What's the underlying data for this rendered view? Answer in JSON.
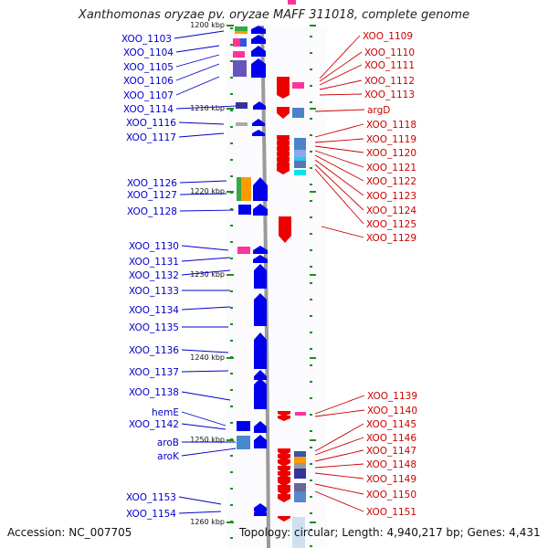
{
  "title": "Xanthomonas oryzae pv. oryzae MAFF 311018, complete genome",
  "footer": {
    "accession": "Accession: NC_007705",
    "topology": "Topology: circular; Length: 4,940,217 bp; Genes: 4,431"
  },
  "colors": {
    "forward_strand": "#0000ee",
    "reverse_strand": "#ee0000",
    "left_label": "#0000cc",
    "right_label": "#cc0000",
    "axis": "#999999",
    "tick": "#228b22"
  },
  "ruler": [
    {
      "label": "1200 kbp",
      "kbp": 1200
    },
    {
      "label": "1210 kbp",
      "kbp": 1210
    },
    {
      "label": "1220 kbp",
      "kbp": 1220
    },
    {
      "label": "1230 kbp",
      "kbp": 1230
    },
    {
      "label": "1240 kbp",
      "kbp": 1240
    },
    {
      "label": "1250 kbp",
      "kbp": 1250
    },
    {
      "label": "1260 kbp",
      "kbp": 1260
    }
  ],
  "forward_genes": [
    {
      "name": "XOO_1103",
      "start": 1201.0,
      "end": 1203.0
    },
    {
      "name": "XOO_1104",
      "start": 1203.0,
      "end": 1203.8
    },
    {
      "name": "XOO_1105",
      "start": 1203.8,
      "end": 1204.5
    },
    {
      "name": "XOO_1106",
      "start": 1204.5,
      "end": 1206.5
    },
    {
      "name": "XOO_1107",
      "start": 1206.5,
      "end": 1207.0
    },
    {
      "name": "XOO_1114",
      "start": 1209.5,
      "end": 1210.4
    },
    {
      "name": "XOO_1116",
      "start": 1211.8,
      "end": 1212.6
    },
    {
      "name": "XOO_1117",
      "start": 1212.6,
      "end": 1213.2
    },
    {
      "name": "XOO_1126",
      "start": 1218.2,
      "end": 1220.7
    },
    {
      "name": "XOO_1127",
      "start": 1220.7,
      "end": 1221.4
    },
    {
      "name": "XOO_1128",
      "start": 1221.4,
      "end": 1222.6
    },
    {
      "name": "XOO_1130",
      "start": 1227.7,
      "end": 1228.8
    },
    {
      "name": "XOO_1131",
      "start": 1228.8,
      "end": 1229.5
    },
    {
      "name": "XOO_1132",
      "start": 1229.5,
      "end": 1232.0
    },
    {
      "name": "XOO_1133",
      "start": 1232.2,
      "end": 1232.8
    },
    {
      "name": "XOO_1134",
      "start": 1232.8,
      "end": 1235.8
    },
    {
      "name": "XOO_1135",
      "start": 1236.0,
      "end": 1236.6
    },
    {
      "name": "XOO_1136",
      "start": 1236.6,
      "end": 1240.3
    },
    {
      "name": "XOO_1137",
      "start": 1240.3,
      "end": 1243.1
    },
    {
      "name": "XOO_1138",
      "start": 1243.1,
      "end": 1246.5
    },
    {
      "name": "hemE",
      "start": 1247.5,
      "end": 1248.6
    },
    {
      "name": "XOO_1142",
      "start": 1248.6,
      "end": 1249.2
    },
    {
      "name": "aroB",
      "start": 1249.4,
      "end": 1250.6
    },
    {
      "name": "aroK",
      "start": 1250.6,
      "end": 1251.2
    },
    {
      "name": "XOO_1153",
      "start": 1256.0,
      "end": 1256.5
    },
    {
      "name": "XOO_1154",
      "start": 1256.5,
      "end": 1257.2
    }
  ],
  "reverse_genes": [
    {
      "name": "XOO_1109",
      "start": 1205.8,
      "end": 1206.2
    },
    {
      "name": "XOO_1110",
      "start": 1206.2,
      "end": 1206.7
    },
    {
      "name": "XOO_1111",
      "start": 1206.7,
      "end": 1207.0
    },
    {
      "name": "XOO_1112",
      "start": 1207.0,
      "end": 1207.6
    },
    {
      "name": "XOO_1113",
      "start": 1207.6,
      "end": 1208.3
    },
    {
      "name": "argD",
      "start": 1209.3,
      "end": 1210.8
    },
    {
      "name": "XOO_1118",
      "start": 1212.5,
      "end": 1213.0
    },
    {
      "name": "XOO_1119",
      "start": 1213.0,
      "end": 1213.6
    },
    {
      "name": "XOO_1120",
      "start": 1213.6,
      "end": 1214.2
    },
    {
      "name": "XOO_1121",
      "start": 1214.2,
      "end": 1214.8
    },
    {
      "name": "XOO_1122",
      "start": 1214.8,
      "end": 1215.4
    },
    {
      "name": "XOO_1123",
      "start": 1215.4,
      "end": 1216.0
    },
    {
      "name": "XOO_1124",
      "start": 1216.0,
      "end": 1216.6
    },
    {
      "name": "XOO_1125",
      "start": 1216.6,
      "end": 1217.0
    },
    {
      "name": "XOO_1129",
      "start": 1222.7,
      "end": 1225.7
    },
    {
      "name": "XOO_1139",
      "start": 1246.3,
      "end": 1246.8
    },
    {
      "name": "XOO_1140",
      "start": 1246.8,
      "end": 1247.3
    },
    {
      "name": "XOO_1145",
      "start": 1251.2,
      "end": 1251.7
    },
    {
      "name": "XOO_1146",
      "start": 1251.7,
      "end": 1252.2
    },
    {
      "name": "XOO_1147",
      "start": 1252.2,
      "end": 1252.8
    },
    {
      "name": "XOO_1148",
      "start": 1252.8,
      "end": 1253.4
    },
    {
      "name": "XOO_1149",
      "start": 1253.4,
      "end": 1254.0
    },
    {
      "name": "XOO_1150",
      "start": 1254.0,
      "end": 1254.8
    },
    {
      "name": "XOO_1151",
      "start": 1254.8,
      "end": 1256.0
    }
  ]
}
